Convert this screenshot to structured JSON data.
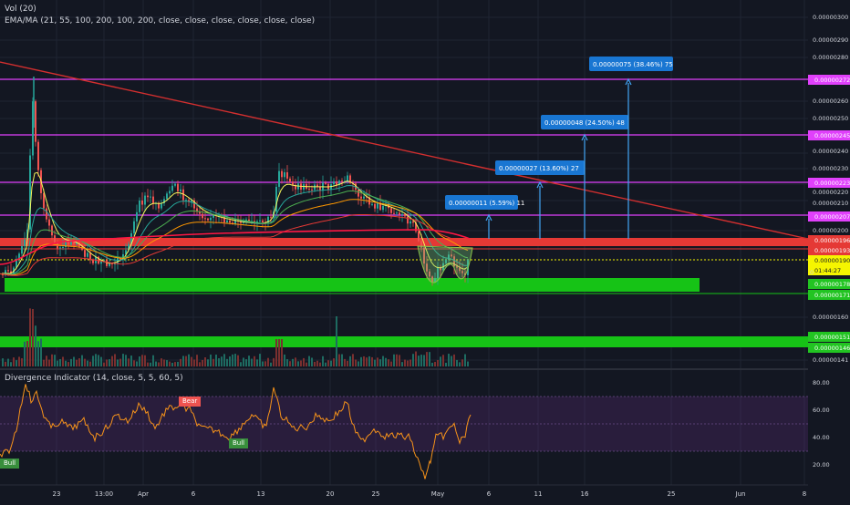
{
  "header": {
    "vol_label": "Vol (20)",
    "ema_label": "EMA/MA (21, 55, 100, 200, 100, 200, close, close, close, close, close, close)"
  },
  "oscillator": {
    "label": "Divergence Indicator (14, close, 5, 5, 60, 5)",
    "bear_tag": "Bear",
    "bull_tags": [
      "Bull",
      "Bull"
    ]
  },
  "measure_labels": [
    "0.00000011 (5.59%) 11",
    "0.00000027 (13.60%) 27",
    "0.00000048 (24.50%) 48",
    "0.00000075 (38.46%) 75"
  ],
  "price_axis": {
    "ticks": [
      "0.00000300",
      "0.00000290",
      "0.00000280",
      "0.00000260",
      "0.00000250",
      "0.00000240",
      "0.00000230",
      "0.00000220",
      "0.00000210",
      "0.00000200",
      "0.00000160",
      "0.00000141"
    ],
    "badges": [
      {
        "text": "0.00000272",
        "color": "#e040fb"
      },
      {
        "text": "0.00000245",
        "color": "#e040fb"
      },
      {
        "text": "0.00000223",
        "color": "#e040fb"
      },
      {
        "text": "0.00000207",
        "color": "#e040fb"
      },
      {
        "text": "0.00000196",
        "color": "#e53935"
      },
      {
        "text": "0.00000193",
        "color": "#e53935"
      },
      {
        "text": "0.00000190",
        "color": "#f5f500"
      },
      {
        "text": "01:44:27",
        "color": "#f5f500"
      },
      {
        "text": "0.00000178",
        "color": "#22c422"
      },
      {
        "text": "0.00000171",
        "color": "#22c422"
      },
      {
        "text": "0.00000151",
        "color": "#22c422"
      },
      {
        "text": "0.00000146",
        "color": "#22c422"
      }
    ],
    "partial_label": "0"
  },
  "osc_axis": {
    "ticks": [
      "80.00",
      "60.00",
      "40.00",
      "20.00"
    ]
  },
  "time_axis": {
    "labels": [
      "23",
      "13:00",
      "Apr",
      "6",
      "13",
      "20",
      "25",
      "May",
      "6",
      "11",
      "16",
      "25",
      "Jun",
      "8"
    ]
  },
  "colors": {
    "background": "#131722",
    "up": "#26a69a",
    "down": "#ef5350",
    "magenta": "#e040fb",
    "support_green": "#16c316",
    "resistance_red": "#e53935",
    "trend_red": "#d32f2f",
    "measure_blue": "#1976d2",
    "osc_line": "#f7931a",
    "osc_band": "#5c2c7a"
  }
}
